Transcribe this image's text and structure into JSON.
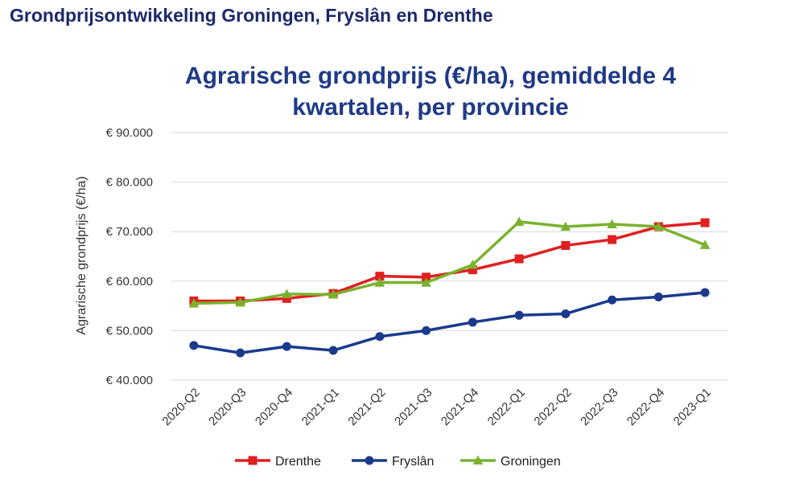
{
  "header": {
    "title": "Grondprijsontwikkeling Groningen, Fryslân en Drenthe"
  },
  "chart_data": {
    "type": "line",
    "title_lines": [
      "Agrarische grondprijs (€/ha), gemiddelde 4",
      "kwartalen, per provincie"
    ],
    "xlabel": "",
    "ylabel": "Agrarische grondprijs (€/ha)",
    "ylim": [
      40000,
      90000
    ],
    "y_ticks": [
      90000,
      80000,
      70000,
      60000,
      50000,
      40000
    ],
    "y_tick_labels": [
      "€ 90.000",
      "€ 80.000",
      "€ 70.000",
      "€ 60.000",
      "€ 50.000",
      "€ 40.000"
    ],
    "categories": [
      "2020-Q2",
      "2020-Q3",
      "2020-Q4",
      "2021-Q1",
      "2021-Q2",
      "2021-Q3",
      "2021-Q4",
      "2022-Q1",
      "2022-Q2",
      "2022-Q3",
      "2022-Q4",
      "2023-Q1"
    ],
    "grid": true,
    "legend_position": "bottom",
    "series": [
      {
        "name": "Drenthe",
        "color": "#e02020",
        "marker": "square",
        "values": [
          56000,
          56000,
          56500,
          57500,
          61000,
          60800,
          62300,
          64500,
          67200,
          68400,
          71000,
          71800
        ]
      },
      {
        "name": "Fryslân",
        "color": "#1a3a8c",
        "marker": "circle",
        "values": [
          47000,
          45500,
          46800,
          46000,
          48800,
          50000,
          51700,
          53100,
          53400,
          56200,
          56800,
          57700
        ]
      },
      {
        "name": "Groningen",
        "color": "#7ab22e",
        "marker": "triangle",
        "values": [
          55500,
          55700,
          57400,
          57300,
          59700,
          59700,
          63300,
          72000,
          71000,
          71500,
          71000,
          67300
        ]
      }
    ]
  }
}
